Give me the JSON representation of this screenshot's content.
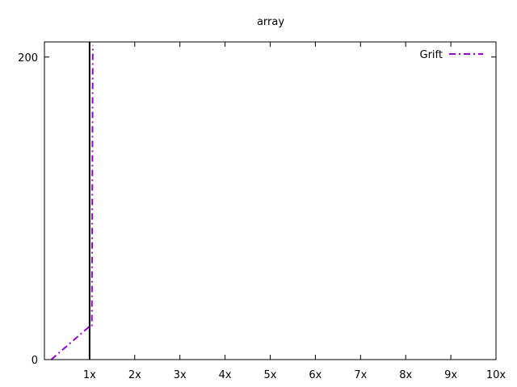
{
  "chart_data": {
    "type": "line",
    "title": "array",
    "xlabel": "",
    "ylabel": "",
    "xlim": [
      0,
      10
    ],
    "ylim": [
      0,
      210
    ],
    "x_ticks": [
      {
        "value": 1,
        "label": "1x"
      },
      {
        "value": 2,
        "label": "2x"
      },
      {
        "value": 3,
        "label": "3x"
      },
      {
        "value": 4,
        "label": "4x"
      },
      {
        "value": 5,
        "label": "5x"
      },
      {
        "value": 6,
        "label": "6x"
      },
      {
        "value": 7,
        "label": "7x"
      },
      {
        "value": 8,
        "label": "8x"
      },
      {
        "value": 9,
        "label": "9x"
      },
      {
        "value": 10,
        "label": "10x"
      }
    ],
    "y_ticks": [
      {
        "value": 0,
        "label": "0"
      },
      {
        "value": 200,
        "label": "200"
      }
    ],
    "reference_lines": [
      {
        "axis": "x",
        "value": 1,
        "color": "#000000"
      }
    ],
    "series": [
      {
        "name": "Grift",
        "color": "#9400d3",
        "dash": "dash-dot",
        "points": [
          {
            "x": 0.15,
            "y": 0
          },
          {
            "x": 1.0,
            "y": 22
          },
          {
            "x": 1.05,
            "y": 22
          },
          {
            "x": 1.07,
            "y": 208
          }
        ]
      }
    ],
    "legend_position": "top-right",
    "grid": false
  }
}
